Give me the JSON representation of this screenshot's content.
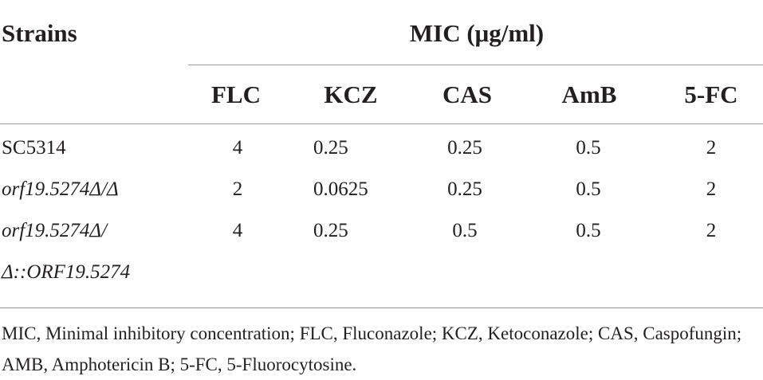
{
  "table": {
    "strains_header": "Strains",
    "mic_header": "MIC (μg/ml)",
    "columns": [
      "FLC",
      "KCZ",
      "CAS",
      "AmB",
      "5-FC"
    ],
    "rows": [
      {
        "strain": "SC5314",
        "strain_italic": false,
        "values": [
          "4",
          "0.25",
          "0.25",
          "0.5",
          "2"
        ]
      },
      {
        "strain": "orf19.5274Δ/Δ",
        "strain_italic": true,
        "values": [
          "2",
          "0.0625",
          "0.25",
          "0.5",
          "2"
        ]
      },
      {
        "strain": "orf19.5274Δ/",
        "strain_cont": "Δ::ORF19.5274",
        "strain_italic": true,
        "values": [
          "4",
          "0.25",
          "0.5",
          "0.5",
          "2"
        ]
      }
    ]
  },
  "footnote": "MIC, Minimal inhibitory concentration; FLC, Fluconazole; KCZ, Ketoconazole; CAS, Caspofungin; AMB, Amphotericin B; 5-FC, 5-Fluorocytosine."
}
